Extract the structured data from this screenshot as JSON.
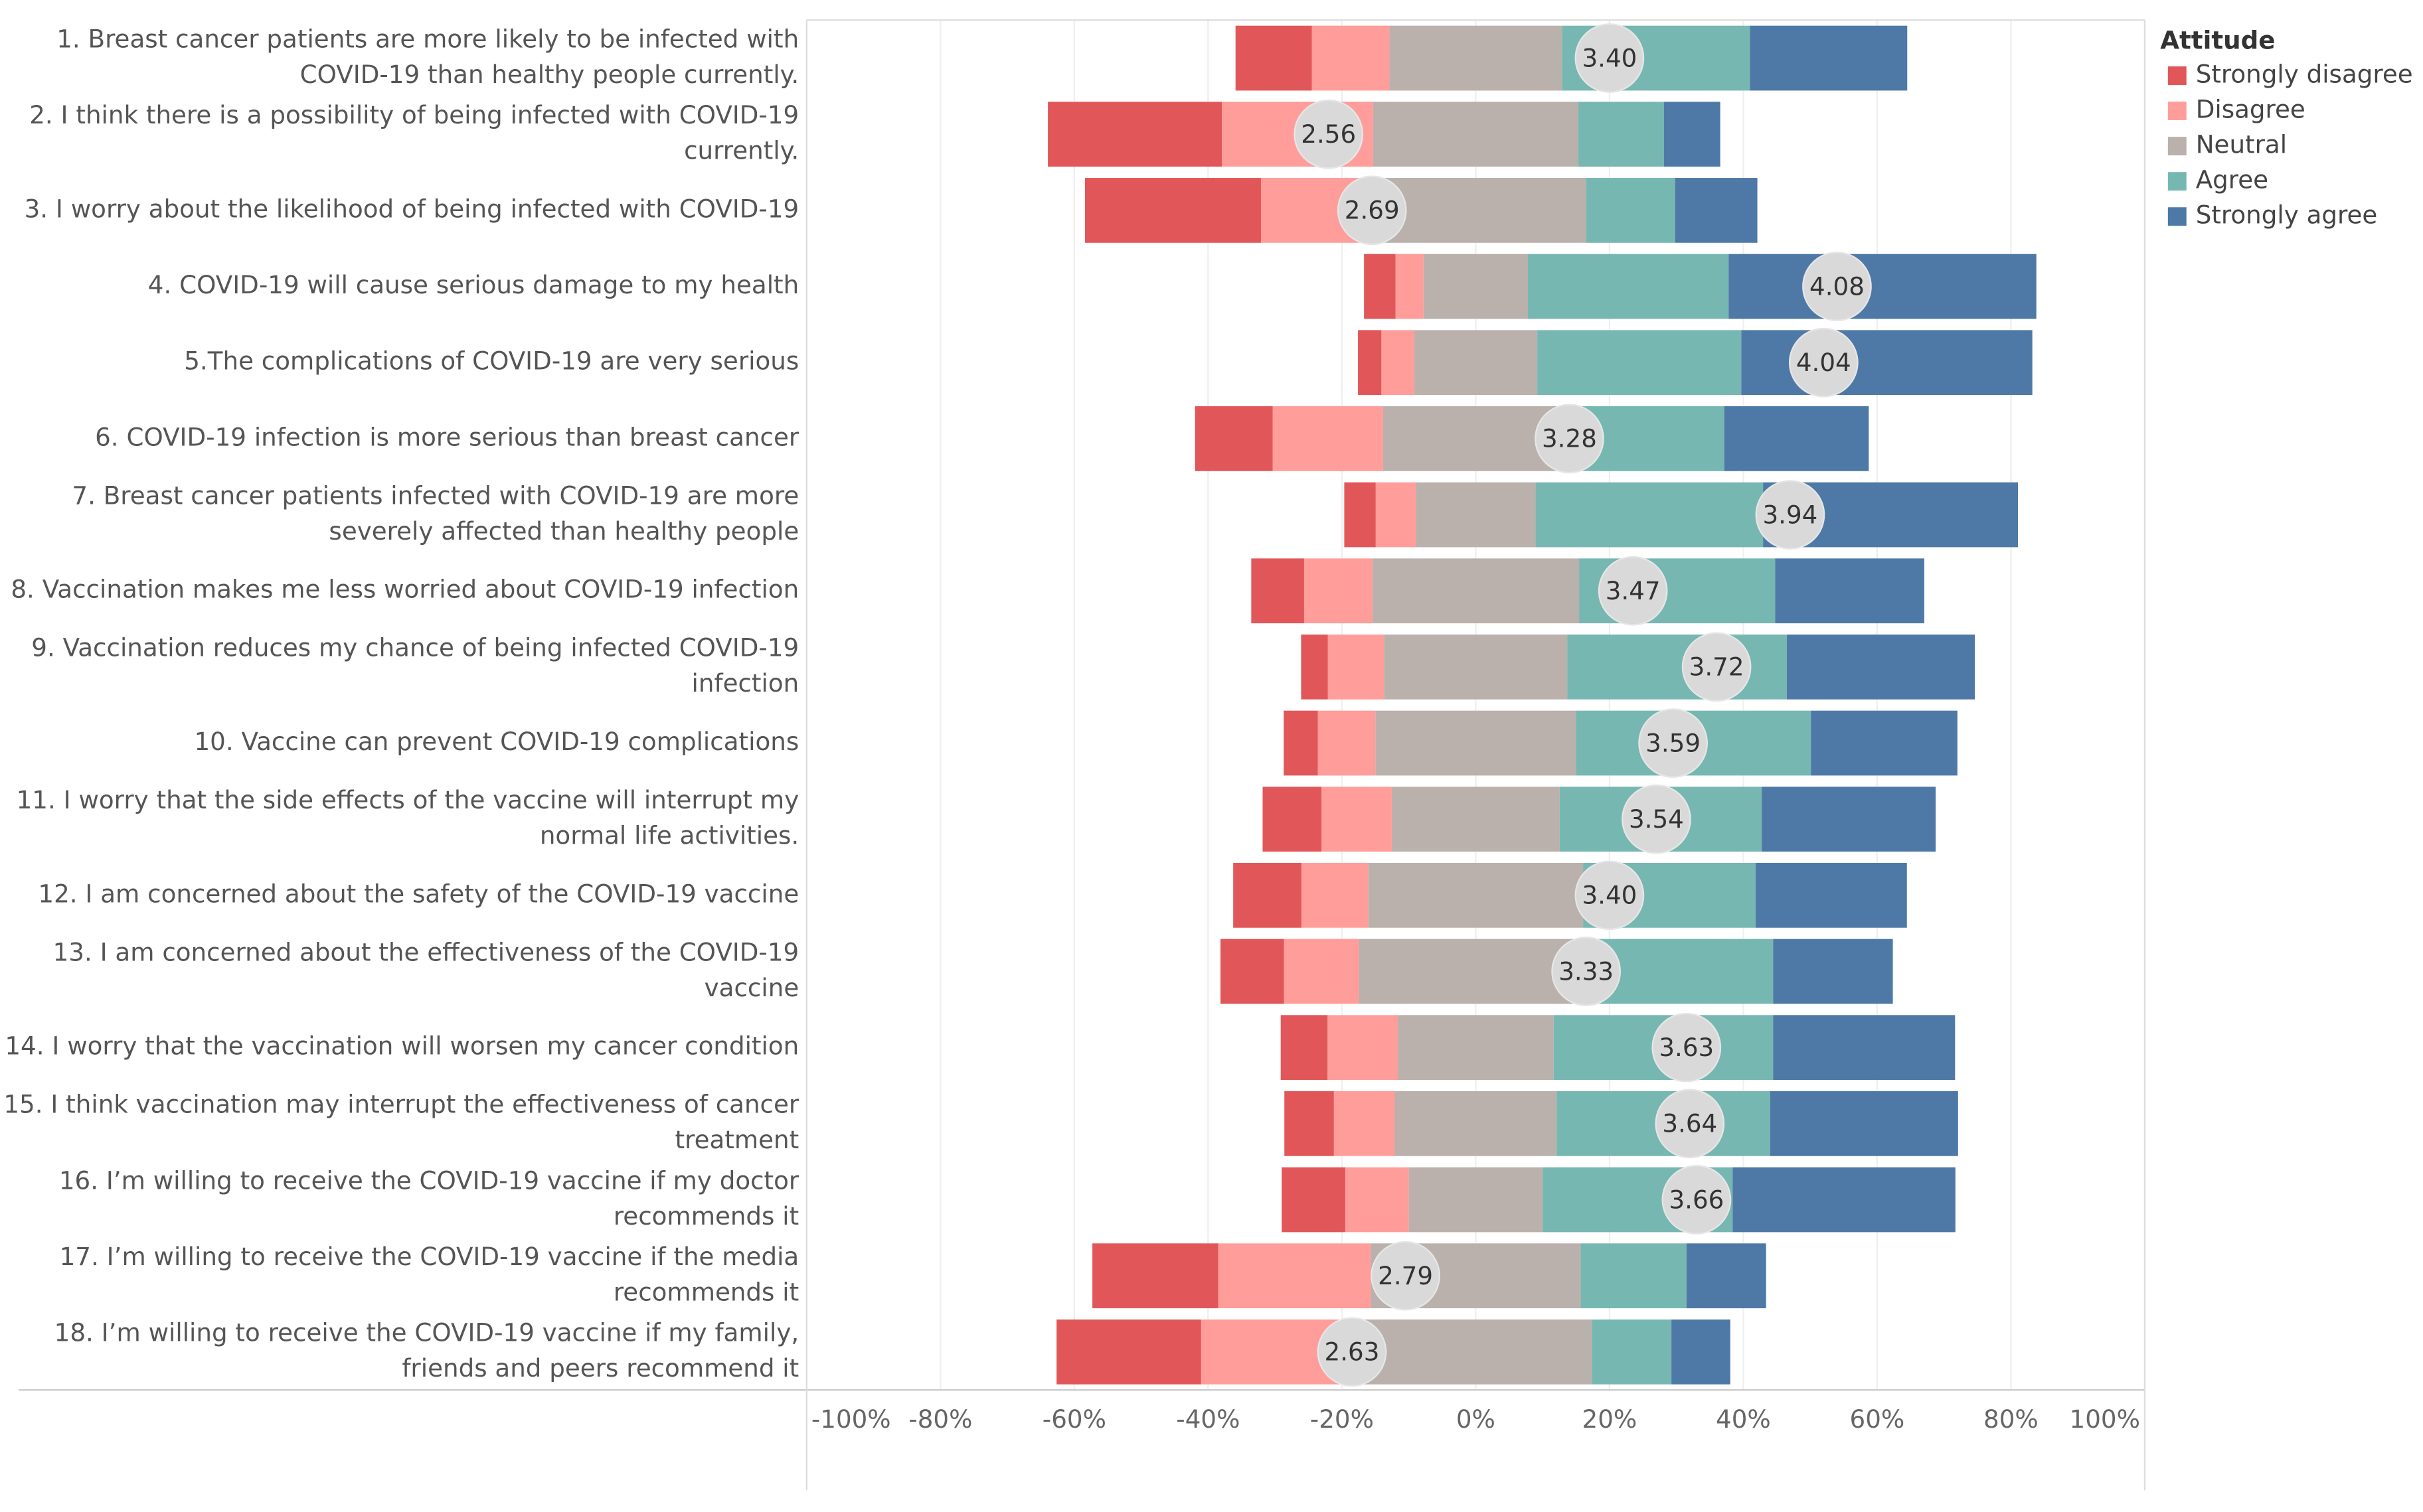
{
  "chart_data": {
    "type": "diverging-stacked-bar",
    "legend_title": "Attitude",
    "legend_position": "right",
    "categories": [
      [
        "1. Breast cancer patients are more likely to be infected with",
        "COVID-19 than healthy people currently."
      ],
      [
        "2. I think there is a possibility of being infected with COVID-19",
        "currently."
      ],
      [
        "3. I worry about the likelihood of being infected with COVID-19"
      ],
      [
        "4. COVID-19 will cause serious damage to my health"
      ],
      [
        "5.The complications of COVID-19 are very serious"
      ],
      [
        "6. COVID-19 infection is more serious than breast cancer"
      ],
      [
        "7. Breast cancer patients infected with COVID-19 are more",
        "severely affected than healthy people"
      ],
      [
        "8. Vaccination makes me less worried about COVID-19 infection"
      ],
      [
        "9. Vaccination reduces my chance of being infected COVID-19",
        "infection"
      ],
      [
        "10. Vaccine can prevent COVID-19 complications"
      ],
      [
        "11. I worry that the side effects of the vaccine will interrupt my",
        "normal life activities."
      ],
      [
        "12. I am concerned about the safety of the COVID-19 vaccine"
      ],
      [
        "13. I am concerned about the effectiveness of the COVID-19",
        "vaccine"
      ],
      [
        "14. I worry that the vaccination will worsen my cancer condition"
      ],
      [
        "15. I think vaccination may interrupt the effectiveness of cancer",
        "treatment"
      ],
      [
        "16. I’m willing to receive the COVID-19 vaccine if my doctor",
        "recommends it"
      ],
      [
        "17. I’m willing to receive the COVID-19 vaccine if the media",
        "recommends it"
      ],
      [
        "18. I’m willing to receive the COVID-19 vaccine if my family,",
        "friends and peers recommend it"
      ]
    ],
    "series": [
      {
        "name": "Strongly disagree",
        "color": "#e15759",
        "side": "negative",
        "values": [
          11.4,
          26.0,
          26.3,
          4.7,
          3.5,
          11.6,
          4.7,
          7.9,
          4.0,
          5.1,
          8.8,
          10.2,
          9.5,
          7.0,
          7.4,
          9.5,
          18.8,
          21.6
        ]
      },
      {
        "name": "Disagree",
        "color": "#ff9d9a",
        "side": "negative",
        "values": [
          11.6,
          22.6,
          15.6,
          4.2,
          4.9,
          16.5,
          6.0,
          10.2,
          8.4,
          8.6,
          10.5,
          10.0,
          11.2,
          10.5,
          9.1,
          9.5,
          22.8,
          23.7
        ]
      },
      {
        "name": "Neutral",
        "color": "#bab0ac",
        "side": "center",
        "values": [
          25.8,
          30.7,
          33.0,
          15.6,
          18.4,
          27.7,
          17.9,
          30.9,
          27.4,
          30.0,
          25.1,
          32.1,
          34.9,
          23.3,
          24.2,
          20.0,
          31.4,
          34.7
        ]
      },
      {
        "name": "Agree",
        "color": "#76b7b2",
        "side": "positive",
        "values": [
          28.1,
          12.8,
          13.3,
          30.0,
          30.5,
          23.3,
          34.0,
          29.3,
          32.8,
          35.1,
          30.2,
          25.8,
          27.0,
          32.8,
          31.9,
          28.4,
          15.8,
          11.9
        ]
      },
      {
        "name": "Strongly agree",
        "color": "#4e79a7",
        "side": "positive",
        "values": [
          23.5,
          8.4,
          12.3,
          46.0,
          43.5,
          21.6,
          38.1,
          22.3,
          28.1,
          21.9,
          26.0,
          22.6,
          17.9,
          27.2,
          28.1,
          33.3,
          11.9,
          8.8
        ]
      }
    ],
    "means": {
      "values": [
        3.4,
        2.56,
        2.69,
        4.08,
        4.04,
        3.28,
        3.94,
        3.47,
        3.72,
        3.59,
        3.54,
        3.4,
        3.33,
        3.63,
        3.64,
        3.66,
        2.79,
        2.63
      ],
      "value_labels": [
        "3.40",
        "2.56",
        "2.69",
        "4.08",
        "4.04",
        "3.28",
        "3.94",
        "3.47",
        "3.72",
        "3.59",
        "3.54",
        "3.40",
        "3.33",
        "3.63",
        "3.64",
        "3.66",
        "2.79",
        "2.63"
      ],
      "scale": [
        1,
        5
      ]
    },
    "xlim": [
      -100,
      100
    ],
    "xticks": [
      {
        "value": -100,
        "label": "-100%"
      },
      {
        "value": -80,
        "label": "-80%"
      },
      {
        "value": -60,
        "label": "-60%"
      },
      {
        "value": -40,
        "label": "-40%"
      },
      {
        "value": -20,
        "label": "-20%"
      },
      {
        "value": 0,
        "label": "0%"
      },
      {
        "value": 20,
        "label": "20%"
      },
      {
        "value": 40,
        "label": "40%"
      },
      {
        "value": 60,
        "label": "60%"
      },
      {
        "value": 80,
        "label": "80%"
      },
      {
        "value": 100,
        "label": "100%"
      }
    ],
    "grid": true
  }
}
